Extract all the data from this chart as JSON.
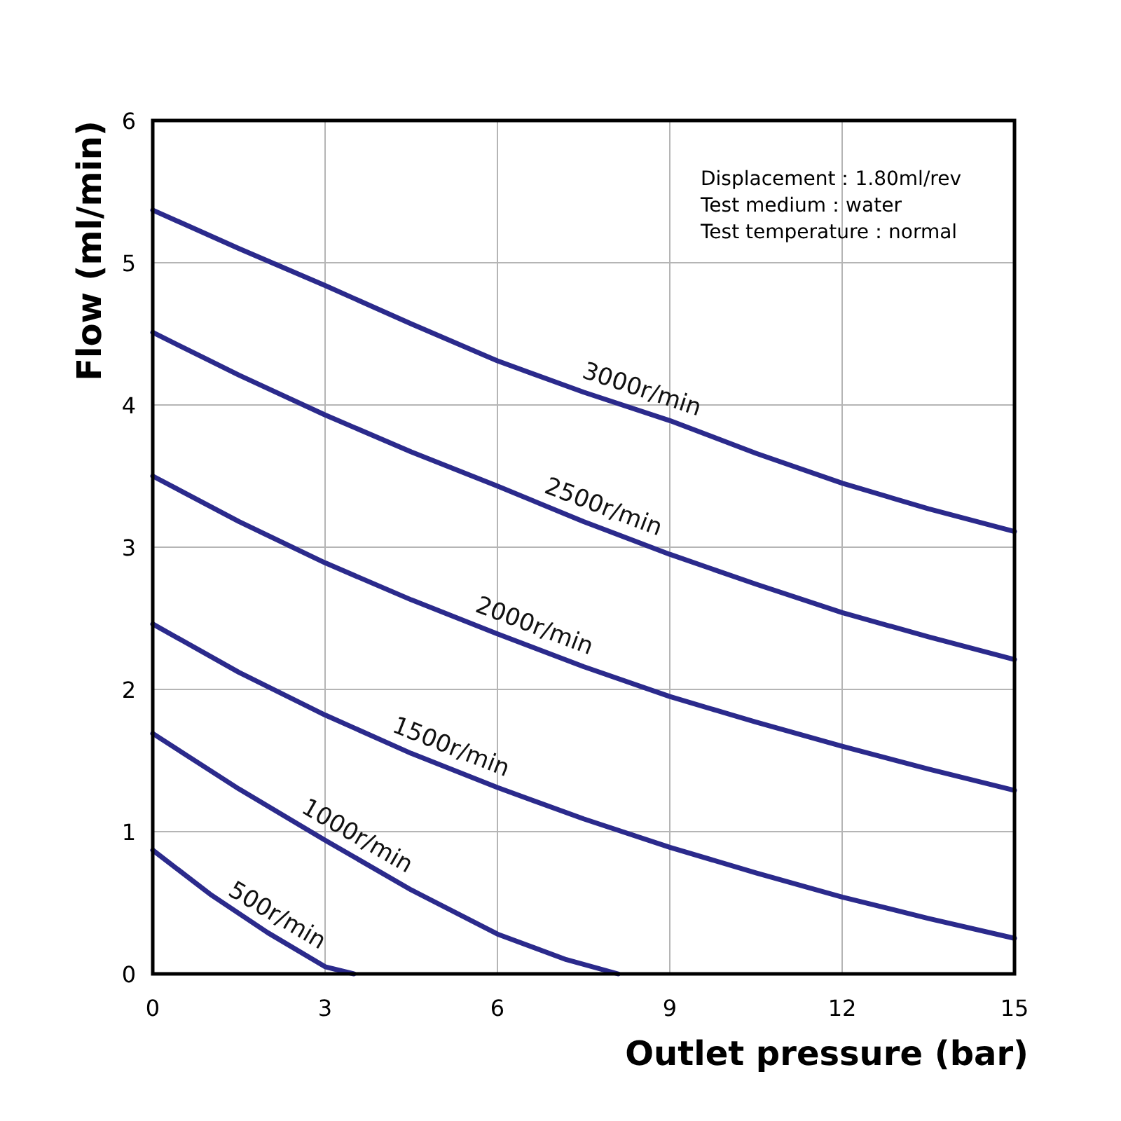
{
  "chart_data": {
    "type": "line",
    "xlabel": "Outlet pressure (bar)",
    "ylabel": "Flow (ml/min)",
    "xlim": [
      0,
      15
    ],
    "ylim": [
      0,
      6
    ],
    "xticks": [
      0,
      3,
      6,
      9,
      12,
      15
    ],
    "yticks": [
      0,
      1,
      2,
      3,
      4,
      5,
      6
    ],
    "grid": true,
    "line_style": "solid",
    "series": [
      {
        "name": "3000r/min",
        "color": "#2b2a8c",
        "x": [
          0,
          1.5,
          3,
          4.5,
          6,
          7.5,
          9,
          10.5,
          12,
          13.5,
          15
        ],
        "values": [
          5.37,
          5.1,
          4.84,
          4.57,
          4.31,
          4.09,
          3.89,
          3.66,
          3.45,
          3.27,
          3.11
        ]
      },
      {
        "name": "2500r/min",
        "color": "#2b2a8c",
        "x": [
          0,
          1.5,
          3,
          4.5,
          6,
          7.5,
          9,
          10.5,
          12,
          13.5,
          15
        ],
        "values": [
          4.51,
          4.21,
          3.93,
          3.67,
          3.43,
          3.18,
          2.95,
          2.74,
          2.54,
          2.37,
          2.21
        ]
      },
      {
        "name": "2000r/min",
        "color": "#2b2a8c",
        "x": [
          0,
          1.5,
          3,
          4.5,
          6,
          7.5,
          9,
          10.5,
          12,
          13.5,
          15
        ],
        "values": [
          3.5,
          3.18,
          2.89,
          2.63,
          2.39,
          2.16,
          1.95,
          1.77,
          1.6,
          1.44,
          1.29
        ]
      },
      {
        "name": "1500r/min",
        "color": "#2b2a8c",
        "x": [
          0,
          1.5,
          3,
          4.5,
          6,
          7.5,
          9,
          10.5,
          12,
          13.5,
          15
        ],
        "values": [
          2.46,
          2.12,
          1.82,
          1.55,
          1.31,
          1.09,
          0.89,
          0.71,
          0.54,
          0.39,
          0.25
        ]
      },
      {
        "name": "1000r/min",
        "color": "#2b2a8c",
        "x": [
          0,
          1.5,
          3,
          4.5,
          6,
          7.2,
          8.1
        ],
        "values": [
          1.69,
          1.3,
          0.94,
          0.59,
          0.28,
          0.1,
          0
        ]
      },
      {
        "name": "500r/min",
        "color": "#2b2a8c",
        "x": [
          0,
          1,
          2,
          3,
          3.5
        ],
        "values": [
          0.87,
          0.56,
          0.29,
          0.05,
          0
        ]
      }
    ],
    "annotations": [
      "Displacement：1.80ml/rev",
      "Test medium：water",
      "Test temperature：normal"
    ]
  }
}
